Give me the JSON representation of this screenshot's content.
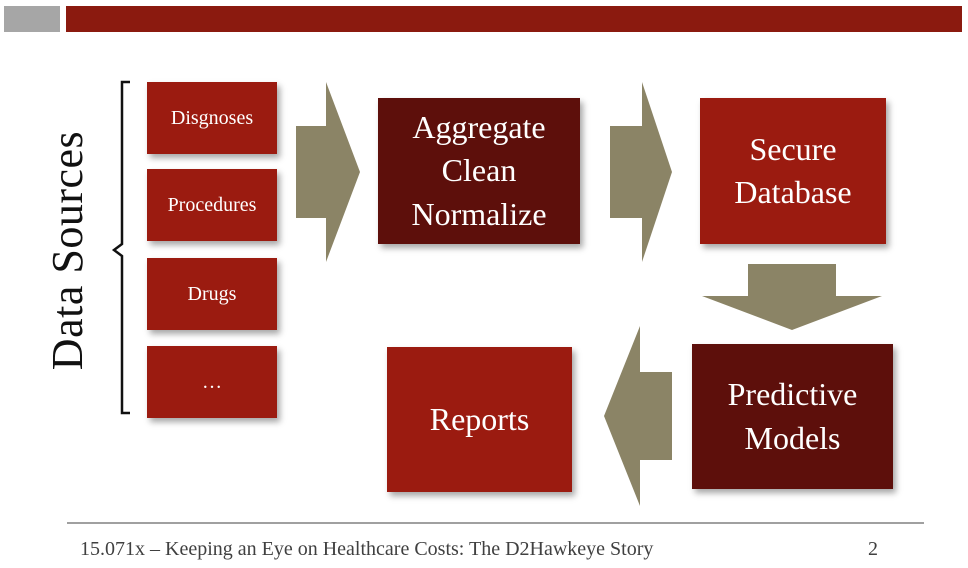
{
  "header": {
    "accent_color": "#8b1a0f",
    "grey_color": "#a6a6a6"
  },
  "diagram": {
    "vertical_title": "Data Sources",
    "sources": [
      "Disgnoses",
      "Procedures",
      "Drugs",
      "…"
    ],
    "stages": {
      "aggregate": "Aggregate\nClean\nNormalize",
      "secure_db": "Secure\nDatabase",
      "predictive": "Predictive\nModels",
      "reports": "Reports"
    },
    "colors": {
      "box_red": "#9b1b10",
      "box_dark": "#5d0f0b",
      "arrow": "#8b8466"
    }
  },
  "footer": {
    "text": "15.071x – Keeping an Eye on Healthcare Costs: The D2Hawkeye Story",
    "page_number": "2"
  }
}
